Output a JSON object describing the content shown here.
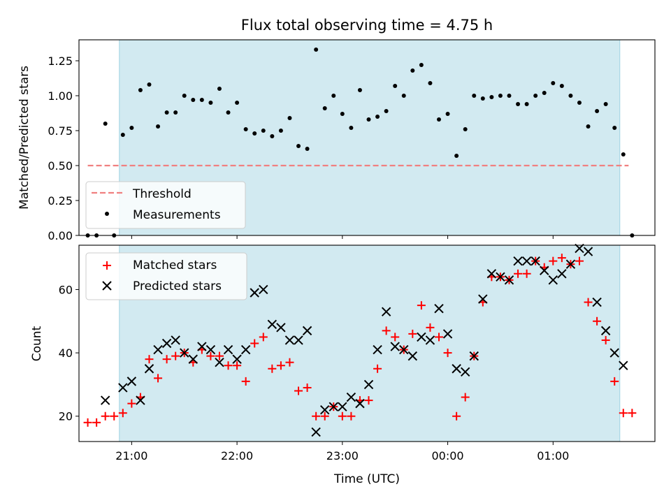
{
  "chart_data": [
    {
      "type": "scatter",
      "title": "Flux total observing time = 4.75 h",
      "ylabel": "Matched/Predicted stars",
      "xlabel": "",
      "ylim": [
        0,
        1.4
      ],
      "yticks": [
        "0.00",
        "0.25",
        "0.50",
        "0.75",
        "1.00",
        "1.25"
      ],
      "xlim": [
        "20:30",
        "01:58"
      ],
      "shaded_span": [
        "20:53",
        "01:38"
      ],
      "shade_color": "#add8e6",
      "legend_position": "lower-left",
      "threshold": {
        "name": "Threshold",
        "value": 0.5,
        "color": "#f08080",
        "x_start": "20:35",
        "x_end": "01:43"
      },
      "series": [
        {
          "name": "Measurements",
          "color": "#000000",
          "points": [
            [
              "20:35",
              0
            ],
            [
              "20:40",
              0
            ],
            [
              "20:45",
              0.8
            ],
            [
              "20:50",
              0
            ],
            [
              "20:55",
              0.72
            ],
            [
              "21:00",
              0.77
            ],
            [
              "21:05",
              1.04
            ],
            [
              "21:10",
              1.08
            ],
            [
              "21:15",
              0.78
            ],
            [
              "21:20",
              0.88
            ],
            [
              "21:25",
              0.88
            ],
            [
              "21:30",
              1.0
            ],
            [
              "21:35",
              0.97
            ],
            [
              "21:40",
              0.97
            ],
            [
              "21:45",
              0.95
            ],
            [
              "21:50",
              1.05
            ],
            [
              "21:55",
              0.88
            ],
            [
              "22:00",
              0.95
            ],
            [
              "22:05",
              0.76
            ],
            [
              "22:10",
              0.73
            ],
            [
              "22:15",
              0.75
            ],
            [
              "22:20",
              0.71
            ],
            [
              "22:25",
              0.75
            ],
            [
              "22:30",
              0.84
            ],
            [
              "22:35",
              0.64
            ],
            [
              "22:40",
              0.62
            ],
            [
              "22:45",
              1.33
            ],
            [
              "22:50",
              0.91
            ],
            [
              "22:55",
              1.0
            ],
            [
              "23:00",
              0.87
            ],
            [
              "23:05",
              0.77
            ],
            [
              "23:10",
              1.04
            ],
            [
              "23:15",
              0.83
            ],
            [
              "23:20",
              0.85
            ],
            [
              "23:25",
              0.89
            ],
            [
              "23:30",
              1.07
            ],
            [
              "23:35",
              1.0
            ],
            [
              "23:40",
              1.18
            ],
            [
              "23:45",
              1.22
            ],
            [
              "23:50",
              1.09
            ],
            [
              "23:55",
              0.83
            ],
            [
              "00:00",
              0.87
            ],
            [
              "00:05",
              0.57
            ],
            [
              "00:10",
              0.76
            ],
            [
              "00:15",
              1.0
            ],
            [
              "00:20",
              0.98
            ],
            [
              "00:25",
              0.99
            ],
            [
              "00:30",
              1.0
            ],
            [
              "00:35",
              1.0
            ],
            [
              "00:40",
              0.94
            ],
            [
              "00:45",
              0.94
            ],
            [
              "00:50",
              1.0
            ],
            [
              "00:55",
              1.02
            ],
            [
              "01:00",
              1.09
            ],
            [
              "01:05",
              1.07
            ],
            [
              "01:10",
              1.0
            ],
            [
              "01:15",
              0.95
            ],
            [
              "01:20",
              0.78
            ],
            [
              "01:25",
              0.89
            ],
            [
              "01:30",
              0.94
            ],
            [
              "01:35",
              0.77
            ],
            [
              "01:40",
              0.58
            ],
            [
              "01:45",
              0
            ]
          ]
        }
      ]
    },
    {
      "type": "scatter",
      "title": "",
      "ylabel": "Count",
      "xlabel": "Time (UTC)",
      "ylim": [
        12,
        74
      ],
      "yticks": [
        "20",
        "40",
        "60"
      ],
      "xticks": [
        "21:00",
        "22:00",
        "23:00",
        "00:00",
        "01:00"
      ],
      "xlim": [
        "20:30",
        "01:58"
      ],
      "shaded_span": [
        "20:53",
        "01:38"
      ],
      "shade_color": "#add8e6",
      "legend_position": "upper-left",
      "series": [
        {
          "name": "Matched stars",
          "marker": "plus",
          "color": "#ff0000",
          "points": [
            [
              "20:35",
              18
            ],
            [
              "20:40",
              18
            ],
            [
              "20:45",
              20
            ],
            [
              "20:50",
              20
            ],
            [
              "20:55",
              21
            ],
            [
              "21:00",
              24
            ],
            [
              "21:05",
              26
            ],
            [
              "21:10",
              38
            ],
            [
              "21:15",
              32
            ],
            [
              "21:20",
              38
            ],
            [
              "21:25",
              39
            ],
            [
              "21:30",
              40
            ],
            [
              "21:35",
              37
            ],
            [
              "21:40",
              41
            ],
            [
              "21:45",
              39
            ],
            [
              "21:50",
              39
            ],
            [
              "21:55",
              36
            ],
            [
              "22:00",
              36
            ],
            [
              "22:05",
              31
            ],
            [
              "22:10",
              43
            ],
            [
              "22:15",
              45
            ],
            [
              "22:20",
              35
            ],
            [
              "22:25",
              36
            ],
            [
              "22:30",
              37
            ],
            [
              "22:35",
              28
            ],
            [
              "22:40",
              29
            ],
            [
              "22:45",
              20
            ],
            [
              "22:50",
              20
            ],
            [
              "22:55",
              23
            ],
            [
              "23:00",
              20
            ],
            [
              "23:05",
              20
            ],
            [
              "23:10",
              25
            ],
            [
              "23:15",
              25
            ],
            [
              "23:20",
              35
            ],
            [
              "23:25",
              47
            ],
            [
              "23:30",
              45
            ],
            [
              "23:35",
              41
            ],
            [
              "23:40",
              46
            ],
            [
              "23:45",
              55
            ],
            [
              "23:50",
              48
            ],
            [
              "23:55",
              45
            ],
            [
              "00:00",
              40
            ],
            [
              "00:05",
              20
            ],
            [
              "00:10",
              26
            ],
            [
              "00:15",
              39
            ],
            [
              "00:20",
              56
            ],
            [
              "00:25",
              64
            ],
            [
              "00:30",
              64
            ],
            [
              "00:35",
              63
            ],
            [
              "00:40",
              65
            ],
            [
              "00:45",
              65
            ],
            [
              "00:50",
              69
            ],
            [
              "00:55",
              67
            ],
            [
              "01:00",
              69
            ],
            [
              "01:05",
              70
            ],
            [
              "01:10",
              68
            ],
            [
              "01:15",
              69
            ],
            [
              "01:20",
              56
            ],
            [
              "01:25",
              50
            ],
            [
              "01:30",
              44
            ],
            [
              "01:35",
              31
            ],
            [
              "01:40",
              21
            ],
            [
              "01:45",
              21
            ]
          ]
        },
        {
          "name": "Predicted stars",
          "marker": "x",
          "color": "#000000",
          "points": [
            [
              "20:45",
              25
            ],
            [
              "20:55",
              29
            ],
            [
              "21:00",
              31
            ],
            [
              "21:05",
              25
            ],
            [
              "21:10",
              35
            ],
            [
              "21:15",
              41
            ],
            [
              "21:20",
              43
            ],
            [
              "21:25",
              44
            ],
            [
              "21:30",
              40
            ],
            [
              "21:35",
              38
            ],
            [
              "21:40",
              42
            ],
            [
              "21:45",
              41
            ],
            [
              "21:50",
              37
            ],
            [
              "21:55",
              41
            ],
            [
              "22:00",
              38
            ],
            [
              "22:05",
              41
            ],
            [
              "22:10",
              59
            ],
            [
              "22:15",
              60
            ],
            [
              "22:20",
              49
            ],
            [
              "22:25",
              48
            ],
            [
              "22:30",
              44
            ],
            [
              "22:35",
              44
            ],
            [
              "22:40",
              47
            ],
            [
              "22:45",
              15
            ],
            [
              "22:50",
              22
            ],
            [
              "22:55",
              23
            ],
            [
              "23:00",
              23
            ],
            [
              "23:05",
              26
            ],
            [
              "23:10",
              24
            ],
            [
              "23:15",
              30
            ],
            [
              "23:20",
              41
            ],
            [
              "23:25",
              53
            ],
            [
              "23:30",
              42
            ],
            [
              "23:35",
              41
            ],
            [
              "23:40",
              39
            ],
            [
              "23:45",
              45
            ],
            [
              "23:50",
              44
            ],
            [
              "23:55",
              54
            ],
            [
              "00:00",
              46
            ],
            [
              "00:05",
              35
            ],
            [
              "00:10",
              34
            ],
            [
              "00:15",
              39
            ],
            [
              "00:20",
              57
            ],
            [
              "00:25",
              65
            ],
            [
              "00:30",
              64
            ],
            [
              "00:35",
              63
            ],
            [
              "00:40",
              69
            ],
            [
              "00:45",
              69
            ],
            [
              "00:50",
              69
            ],
            [
              "00:55",
              66
            ],
            [
              "01:00",
              63
            ],
            [
              "01:05",
              65
            ],
            [
              "01:10",
              68
            ],
            [
              "01:15",
              73
            ],
            [
              "01:20",
              72
            ],
            [
              "01:25",
              56
            ],
            [
              "01:30",
              47
            ],
            [
              "01:35",
              40
            ],
            [
              "01:40",
              36
            ]
          ]
        }
      ]
    }
  ]
}
